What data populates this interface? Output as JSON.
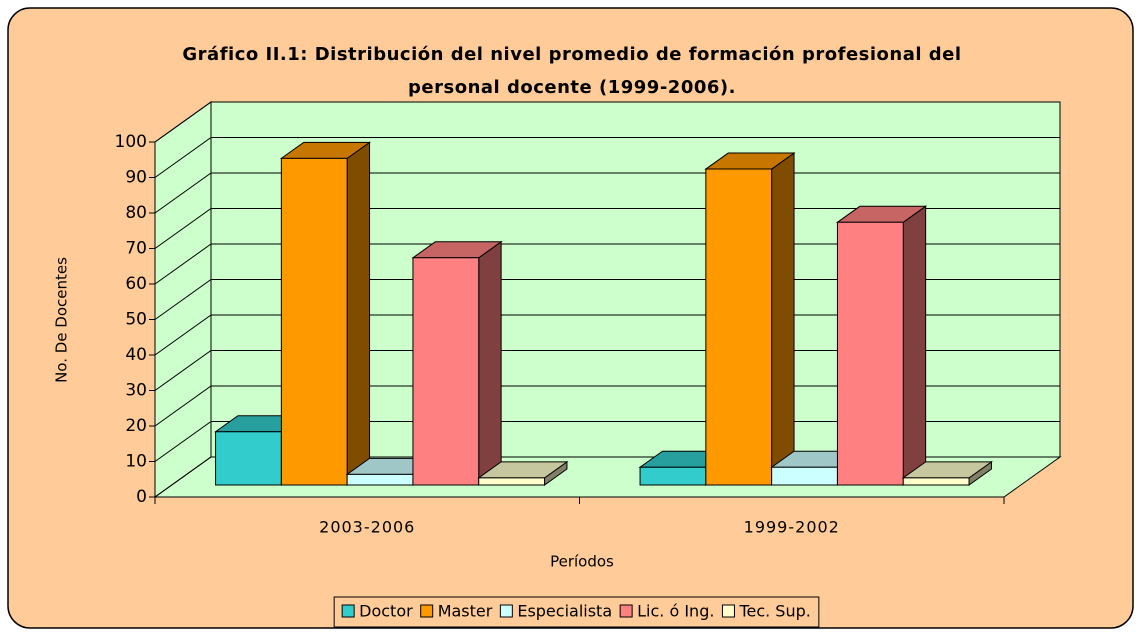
{
  "chart_data": {
    "type": "bar3d",
    "title": [
      "Gráfico II.1: Distribución del nivel promedio de formación profesional del",
      "personal docente (1999-2006)."
    ],
    "xlabel": "Períodos",
    "ylabel": "No. De Docentes",
    "categories": [
      "2003-2006",
      "1999-2002"
    ],
    "series": [
      {
        "name": "Doctor",
        "color": "#33CCCC",
        "values": [
          15,
          5
        ]
      },
      {
        "name": "Master",
        "color": "#FF9900",
        "values": [
          92,
          89
        ]
      },
      {
        "name": "Especialista",
        "color": "#CCFFFF",
        "values": [
          3,
          5
        ]
      },
      {
        "name": "Lic. ó Ing.",
        "color": "#FF8080",
        "values": [
          64,
          74
        ]
      },
      {
        "name": "Tec. Sup.",
        "color": "#FFFFCC",
        "values": [
          2,
          2
        ]
      }
    ],
    "ylim": [
      0,
      100
    ],
    "yticks": [
      0,
      10,
      20,
      30,
      40,
      50,
      60,
      70,
      80,
      90,
      100
    ],
    "grid": true,
    "legend": "bottom",
    "wall_color": "#CCFFCC",
    "background": "#FFCC99"
  }
}
